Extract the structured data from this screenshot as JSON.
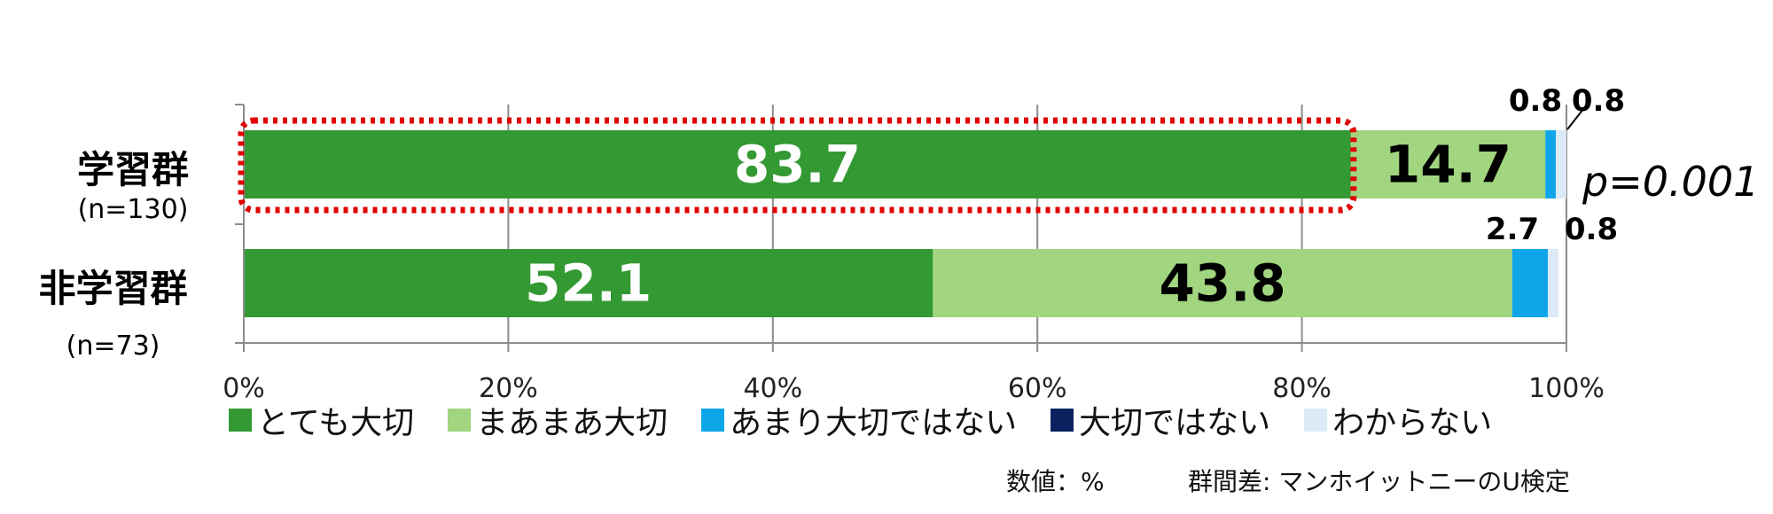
{
  "chart_data": {
    "type": "bar",
    "orientation": "horizontal",
    "stacked": true,
    "categories": [
      {
        "name": "学習群",
        "n_label": "(n=130)"
      },
      {
        "name": "非学習群",
        "n_label": "(n=73)"
      }
    ],
    "series": [
      {
        "name": "とても大切",
        "color": "#339933",
        "values": [
          83.7,
          52.1
        ]
      },
      {
        "name": "まあまあ大切",
        "color": "#a1d57f",
        "values": [
          14.7,
          43.8
        ]
      },
      {
        "name": "あまり大切ではない",
        "color": "#0fa6e9",
        "values": [
          0.8,
          2.7
        ]
      },
      {
        "name": "大切ではない",
        "color": "#0c2260",
        "values": [
          0,
          0
        ]
      },
      {
        "name": "わからない",
        "color": "#dce9f6",
        "values": [
          0.8,
          0.8
        ]
      }
    ],
    "data_labels": [
      [
        "83.7",
        "14.7",
        "0.8",
        "",
        "0.8"
      ],
      [
        "52.1",
        "43.8",
        "2.7",
        "",
        "0.8"
      ]
    ],
    "x_ticks": [
      "0%",
      "20%",
      "40%",
      "60%",
      "80%",
      "100%"
    ],
    "xlim": [
      0,
      100
    ],
    "grid": true,
    "legend_position": "bottom",
    "highlight": {
      "category_index": 0,
      "series_index": 0,
      "style": "red dotted rounded box"
    },
    "annotation": "p=0.001",
    "footnote_units": "数値：%",
    "footnote_test": "群間差: マンホイットニーのU検定"
  }
}
